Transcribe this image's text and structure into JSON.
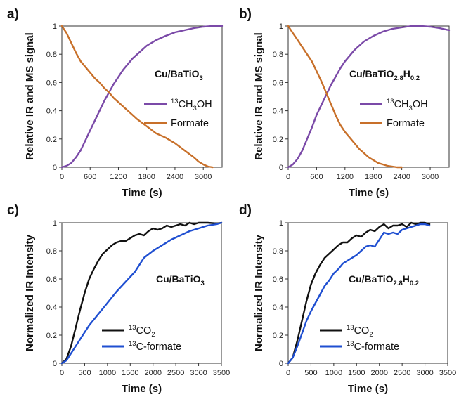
{
  "chart_data": [
    {
      "panel": "a)",
      "type": "line",
      "xlabel": "Time (s)",
      "ylabel": "Relative IR and MS signal",
      "xlim": [
        0,
        3400
      ],
      "ylim": [
        0,
        1
      ],
      "xticks": [
        "0",
        "600",
        "1200",
        "1800",
        "2400",
        "3000"
      ],
      "xtick_values": [
        0,
        600,
        1200,
        1800,
        2400,
        3000
      ],
      "yticks": [
        "0",
        "0.2",
        "0.4",
        "0.6",
        "0.8",
        "1"
      ],
      "ytick_values": [
        0,
        0.2,
        0.4,
        0.6,
        0.8,
        1
      ],
      "annotation": {
        "main": "Cu/BaTiO",
        "sub1": "3",
        "mid": "",
        "sub2": ""
      },
      "series": [
        {
          "name": "CH3OH",
          "name_pre": "13",
          "name_main": "CH",
          "name_sub": "3",
          "name_post": "OH",
          "color": "#7b4aa8",
          "x": [
            0,
            100,
            200,
            300,
            400,
            500,
            600,
            700,
            800,
            900,
            1000,
            1100,
            1200,
            1300,
            1400,
            1500,
            1600,
            1800,
            2000,
            2200,
            2400,
            2600,
            2800,
            3000,
            3200,
            3400
          ],
          "y": [
            0,
            0.01,
            0.03,
            0.07,
            0.12,
            0.19,
            0.26,
            0.33,
            0.4,
            0.47,
            0.53,
            0.59,
            0.64,
            0.69,
            0.73,
            0.77,
            0.8,
            0.86,
            0.9,
            0.93,
            0.955,
            0.97,
            0.985,
            0.995,
            1.0,
            1.0
          ]
        },
        {
          "name": "Formate",
          "name_pre": "",
          "name_main": "Formate",
          "name_sub": "",
          "name_post": "",
          "color": "#c8702a",
          "x": [
            0,
            100,
            200,
            300,
            400,
            500,
            600,
            700,
            800,
            900,
            1000,
            1100,
            1200,
            1300,
            1400,
            1500,
            1600,
            1800,
            2000,
            2200,
            2400,
            2600,
            2800,
            2900,
            3000,
            3100,
            3200
          ],
          "y": [
            1.0,
            0.95,
            0.88,
            0.81,
            0.75,
            0.71,
            0.67,
            0.63,
            0.6,
            0.56,
            0.53,
            0.49,
            0.46,
            0.43,
            0.4,
            0.37,
            0.34,
            0.29,
            0.24,
            0.21,
            0.17,
            0.12,
            0.07,
            0.04,
            0.02,
            0.005,
            0.0
          ]
        }
      ]
    },
    {
      "panel": "b)",
      "type": "line",
      "xlabel": "Time (s)",
      "ylabel": "Relative IR and MS signal",
      "xlim": [
        0,
        3400
      ],
      "ylim": [
        0,
        1
      ],
      "xticks": [
        "0",
        "600",
        "1200",
        "1800",
        "2400",
        "3000"
      ],
      "xtick_values": [
        0,
        600,
        1200,
        1800,
        2400,
        3000
      ],
      "yticks": [
        "0",
        "0.2",
        "0.4",
        "0.6",
        "0.8",
        "1"
      ],
      "ytick_values": [
        0,
        0.2,
        0.4,
        0.6,
        0.8,
        1
      ],
      "annotation": {
        "main": "Cu/BaTiO",
        "sub1": "2.8",
        "mid": "H",
        "sub2": "0.2"
      },
      "series": [
        {
          "name": "CH3OH",
          "name_pre": "13",
          "name_main": "CH",
          "name_sub": "3",
          "name_post": "OH",
          "color": "#7b4aa8",
          "x": [
            0,
            100,
            200,
            300,
            400,
            500,
            600,
            700,
            800,
            900,
            1000,
            1100,
            1200,
            1300,
            1400,
            1500,
            1600,
            1800,
            2000,
            2200,
            2400,
            2600,
            2800,
            3000,
            3200,
            3400
          ],
          "y": [
            0,
            0.02,
            0.06,
            0.12,
            0.2,
            0.28,
            0.37,
            0.44,
            0.51,
            0.58,
            0.64,
            0.7,
            0.75,
            0.79,
            0.83,
            0.86,
            0.89,
            0.93,
            0.96,
            0.98,
            0.99,
            1.0,
            1.0,
            0.995,
            0.985,
            0.97
          ]
        },
        {
          "name": "Formate",
          "name_pre": "",
          "name_main": "Formate",
          "name_sub": "",
          "name_post": "",
          "color": "#c8702a",
          "x": [
            0,
            100,
            200,
            300,
            400,
            500,
            600,
            700,
            800,
            900,
            1000,
            1100,
            1200,
            1300,
            1400,
            1500,
            1600,
            1700,
            1800,
            1900,
            2000,
            2100,
            2200,
            2300,
            2400
          ],
          "y": [
            1.0,
            0.95,
            0.9,
            0.85,
            0.8,
            0.75,
            0.68,
            0.61,
            0.53,
            0.45,
            0.37,
            0.3,
            0.25,
            0.21,
            0.17,
            0.13,
            0.1,
            0.07,
            0.05,
            0.03,
            0.02,
            0.01,
            0.005,
            0.0,
            0.0
          ]
        }
      ]
    },
    {
      "panel": "c)",
      "type": "line",
      "xlabel": "Time (s)",
      "ylabel": "Normalized IR Intensity",
      "xlim": [
        0,
        3500
      ],
      "ylim": [
        0,
        1
      ],
      "xticks": [
        "0",
        "500",
        "1000",
        "1500",
        "2000",
        "2500",
        "3000",
        "3500"
      ],
      "xtick_values": [
        0,
        500,
        1000,
        1500,
        2000,
        2500,
        3000,
        3500
      ],
      "yticks": [
        "0",
        "0.2",
        "0.4",
        "0.6",
        "0.8",
        "1"
      ],
      "ytick_values": [
        0,
        0.2,
        0.4,
        0.6,
        0.8,
        1
      ],
      "annotation": {
        "main": "Cu/BaTiO",
        "sub1": "3",
        "mid": "",
        "sub2": ""
      },
      "series": [
        {
          "name": "13CO2",
          "name_pre": "13",
          "name_main": "CO",
          "name_sub": "2",
          "name_post": "",
          "color": "#111111",
          "x": [
            0,
            100,
            200,
            300,
            400,
            500,
            600,
            700,
            800,
            900,
            1000,
            1100,
            1200,
            1300,
            1400,
            1500,
            1600,
            1700,
            1800,
            1900,
            2000,
            2100,
            2200,
            2300,
            2400,
            2500,
            2600,
            2700,
            2800,
            2900,
            3000,
            3200,
            3400,
            3500
          ],
          "y": [
            0,
            0.03,
            0.12,
            0.25,
            0.38,
            0.5,
            0.6,
            0.67,
            0.73,
            0.78,
            0.81,
            0.84,
            0.86,
            0.87,
            0.87,
            0.89,
            0.91,
            0.92,
            0.91,
            0.94,
            0.96,
            0.95,
            0.96,
            0.98,
            0.97,
            0.98,
            0.99,
            0.98,
            1.0,
            0.99,
            1.0,
            1.0,
            0.995,
            1.0
          ]
        },
        {
          "name": "13C-formate",
          "name_pre": "13",
          "name_main": "C-formate",
          "name_sub": "",
          "name_post": "",
          "color": "#1f4fd1",
          "x": [
            0,
            100,
            200,
            300,
            400,
            500,
            600,
            700,
            800,
            900,
            1000,
            1200,
            1400,
            1600,
            1700,
            1800,
            2000,
            2200,
            2400,
            2600,
            2800,
            3000,
            3200,
            3400,
            3500
          ],
          "y": [
            0,
            0.02,
            0.07,
            0.12,
            0.17,
            0.22,
            0.27,
            0.31,
            0.35,
            0.39,
            0.43,
            0.51,
            0.58,
            0.65,
            0.7,
            0.75,
            0.8,
            0.84,
            0.88,
            0.91,
            0.94,
            0.96,
            0.98,
            0.99,
            1.0
          ]
        }
      ]
    },
    {
      "panel": "d)",
      "type": "line",
      "xlabel": "Time (s)",
      "ylabel": "Normalized IR Intensity",
      "xlim": [
        0,
        3500
      ],
      "ylim": [
        0,
        1
      ],
      "xticks": [
        "0",
        "500",
        "1000",
        "1500",
        "2000",
        "2500",
        "3000",
        "3500"
      ],
      "xtick_values": [
        0,
        500,
        1000,
        1500,
        2000,
        2500,
        3000,
        3500
      ],
      "yticks": [
        "0",
        "0.2",
        "0.4",
        "0.6",
        "0.8",
        "1"
      ],
      "ytick_values": [
        0,
        0.2,
        0.4,
        0.6,
        0.8,
        1
      ],
      "annotation": {
        "main": "Cu/BaTiO",
        "sub1": "2.8",
        "mid": "H",
        "sub2": "0.2"
      },
      "series": [
        {
          "name": "13CO2",
          "name_pre": "13",
          "name_main": "CO",
          "name_sub": "2",
          "name_post": "",
          "color": "#111111",
          "x": [
            0,
            100,
            200,
            300,
            400,
            500,
            600,
            700,
            800,
            900,
            1000,
            1100,
            1200,
            1300,
            1400,
            1500,
            1600,
            1700,
            1800,
            1900,
            2000,
            2100,
            2200,
            2300,
            2400,
            2500,
            2600,
            2700,
            2800,
            2900,
            3000,
            3100
          ],
          "y": [
            0,
            0.04,
            0.16,
            0.3,
            0.44,
            0.56,
            0.64,
            0.7,
            0.75,
            0.78,
            0.81,
            0.84,
            0.86,
            0.86,
            0.89,
            0.91,
            0.9,
            0.93,
            0.95,
            0.94,
            0.97,
            0.99,
            0.96,
            0.98,
            0.98,
            0.99,
            0.97,
            1.0,
            0.99,
            1.0,
            1.0,
            0.99
          ]
        },
        {
          "name": "13C-formate",
          "name_pre": "13",
          "name_main": "C-formate",
          "name_sub": "",
          "name_post": "",
          "color": "#1f4fd1",
          "x": [
            0,
            100,
            200,
            300,
            400,
            500,
            600,
            700,
            800,
            900,
            1000,
            1100,
            1200,
            1300,
            1400,
            1500,
            1600,
            1700,
            1800,
            1900,
            2000,
            2100,
            2200,
            2300,
            2400,
            2500,
            2600,
            2700,
            2800,
            2900,
            3000,
            3100
          ],
          "y": [
            0,
            0.04,
            0.12,
            0.21,
            0.3,
            0.37,
            0.43,
            0.49,
            0.55,
            0.59,
            0.64,
            0.67,
            0.71,
            0.73,
            0.75,
            0.77,
            0.8,
            0.83,
            0.84,
            0.83,
            0.88,
            0.93,
            0.92,
            0.93,
            0.92,
            0.95,
            0.96,
            0.97,
            0.98,
            0.99,
            0.99,
            0.98
          ]
        }
      ]
    }
  ]
}
